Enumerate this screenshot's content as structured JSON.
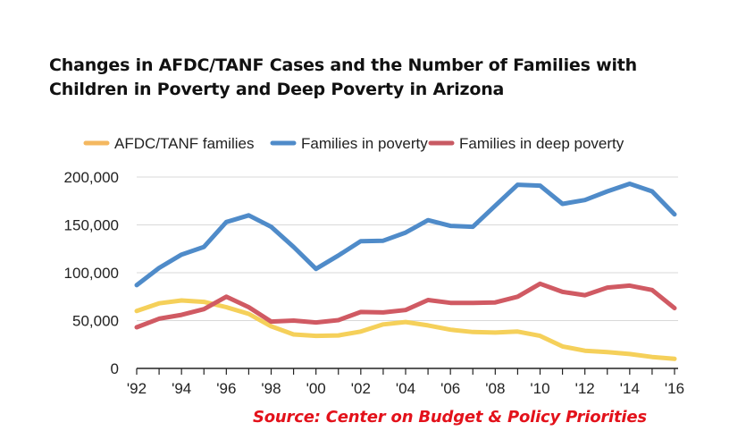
{
  "chart_data": {
    "type": "line",
    "title_lines": [
      "Changes in AFDC/TANF Cases and the Number of Families with",
      "Children in Poverty and Deep Poverty in Arizona"
    ],
    "x": [
      1992,
      1993,
      1994,
      1995,
      1996,
      1997,
      1998,
      1999,
      2000,
      2001,
      2002,
      2003,
      2004,
      2005,
      2006,
      2007,
      2008,
      2009,
      2010,
      2011,
      2012,
      2013,
      2014,
      2015,
      2016
    ],
    "x_tick_labels": [
      "'92",
      "'94",
      "'96",
      "'98",
      "'00",
      "'02",
      "'04",
      "'06",
      "'08",
      "'10",
      "'12",
      "'14",
      "'16"
    ],
    "x_tick_values": [
      1992,
      1994,
      1996,
      1998,
      2000,
      2002,
      2004,
      2006,
      2008,
      2010,
      2012,
      2014,
      2016
    ],
    "ylim": [
      0,
      200000
    ],
    "y_ticks": [
      0,
      50000,
      100000,
      150000,
      200000
    ],
    "y_tick_labels": [
      "0",
      "50,000",
      "100,000",
      "150,000",
      "200,000"
    ],
    "grid": "horizontal",
    "legend_position": "top",
    "series": [
      {
        "name": "AFDC/TANF families",
        "color": "#f5d05a",
        "legend_color": "#f4b860",
        "values": [
          60000,
          68000,
          71000,
          69500,
          64000,
          57000,
          44000,
          35500,
          34000,
          34500,
          38500,
          46000,
          48500,
          45000,
          40500,
          38000,
          37500,
          38500,
          34000,
          23000,
          18500,
          17000,
          15000,
          12000,
          10000
        ]
      },
      {
        "name": "Families in poverty",
        "color": "#4f8bc9",
        "legend_color": "#4f8bc9",
        "values": [
          87000,
          105000,
          119000,
          127000,
          153000,
          160000,
          148000,
          127000,
          104000,
          118000,
          133000,
          133500,
          142000,
          155000,
          149000,
          148000,
          170000,
          192000,
          191000,
          172000,
          176000,
          185000,
          193000,
          185000,
          161000
        ]
      },
      {
        "name": "Families in deep poverty",
        "color": "#d05a63",
        "legend_color": "#c85a63",
        "values": [
          43000,
          52000,
          56000,
          62000,
          75000,
          64000,
          49000,
          50000,
          48000,
          50500,
          59000,
          58500,
          61000,
          71500,
          68500,
          68500,
          69000,
          75000,
          88500,
          80000,
          76500,
          84500,
          86500,
          82000,
          63000
        ]
      }
    ]
  },
  "source": "Source: Center on Budget & Policy Priorities"
}
